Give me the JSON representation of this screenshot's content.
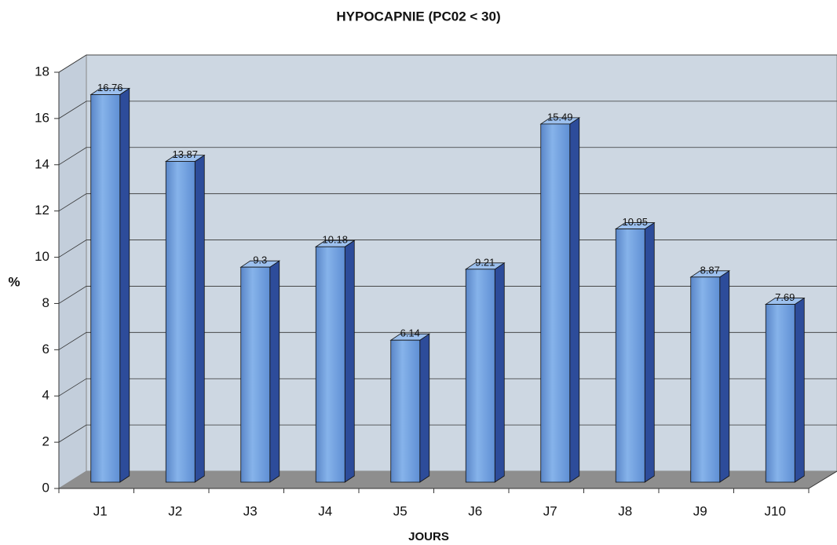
{
  "chart_data": {
    "type": "bar3d",
    "title": "HYPOCAPNIE (PC02 < 30)",
    "x_label": "JOURS",
    "y_label": "%",
    "categories": [
      "J1",
      "J2",
      "J3",
      "J4",
      "J5",
      "J6",
      "J7",
      "J8",
      "J9",
      "J10"
    ],
    "values": [
      16.76,
      13.87,
      9.3,
      10.18,
      6.14,
      9.21,
      15.49,
      10.95,
      8.87,
      7.69
    ],
    "color": "#6f9fdc",
    "ylim": [
      0,
      18
    ],
    "yticks": [
      0,
      2,
      4,
      6,
      8,
      10,
      12,
      14,
      16,
      18
    ],
    "grid": true
  }
}
